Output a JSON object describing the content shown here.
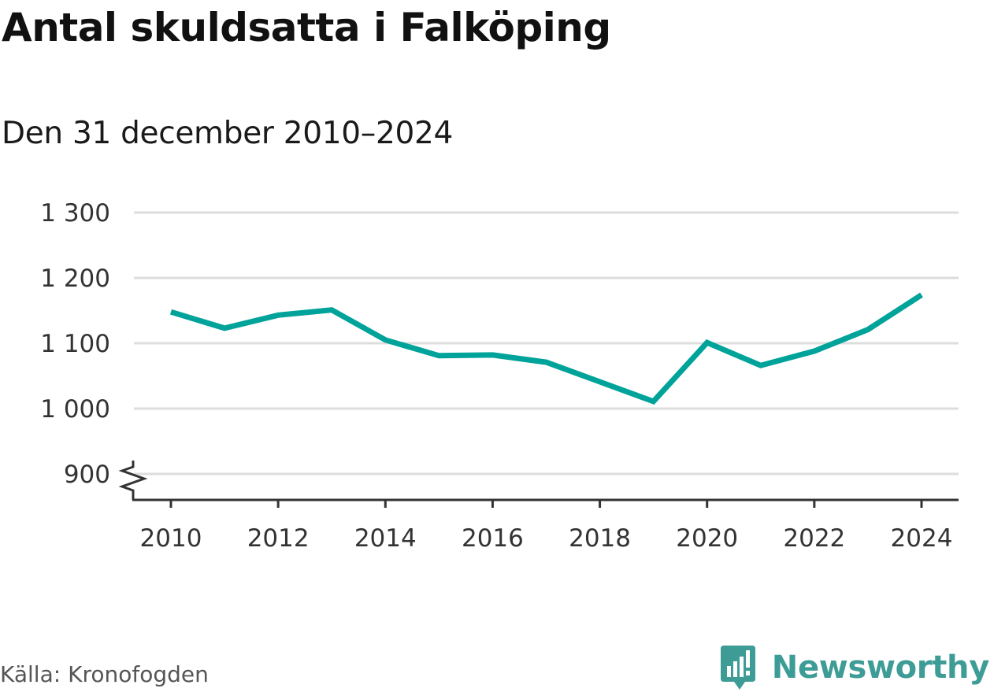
{
  "title": "Antal skuldsatta i Falköping",
  "subtitle": "Den 31 december 2010–2024",
  "source": "Källa: Kronofogden",
  "brand": {
    "name": "Newsworthy",
    "icon": "bar-chart-speech-bubble-icon",
    "color": "#3e9c96"
  },
  "colors": {
    "line": "#00a39a",
    "grid": "#dddddd",
    "axis": "#333333"
  },
  "chart_data": {
    "type": "line",
    "x": [
      2010,
      2011,
      2012,
      2013,
      2014,
      2015,
      2016,
      2017,
      2018,
      2019,
      2020,
      2021,
      2022,
      2023,
      2024
    ],
    "series": [
      {
        "values": [
          1148,
          1123,
          1143,
          1151,
          1105,
          1081,
          1082,
          1071,
          1041,
          1011,
          1101,
          1066,
          1088,
          1121,
          1174
        ]
      }
    ],
    "x_ticks": [
      "2010",
      "2012",
      "2014",
      "2016",
      "2018",
      "2020",
      "2022",
      "2024"
    ],
    "y_ticks": [
      "900",
      "1 000",
      "1 100",
      "1 200",
      "1 300"
    ],
    "ylim": [
      860,
      1300
    ],
    "axis_break": true,
    "grid": "horizontal",
    "xlabel": "",
    "ylabel": ""
  }
}
